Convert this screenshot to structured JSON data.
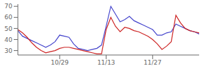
{
  "chart_data": {
    "type": "line",
    "x": [
      0,
      1,
      2,
      3,
      4,
      5,
      6,
      7,
      8,
      9,
      10,
      11,
      12,
      13,
      14,
      15,
      16,
      17,
      18,
      19,
      20,
      21,
      22,
      23,
      24,
      25,
      26,
      27,
      28,
      29,
      30,
      31,
      32,
      33,
      34,
      35,
      36,
      37,
      38,
      39
    ],
    "series": [
      {
        "color": "#4444cc",
        "values": [
          48,
          43,
          41,
          39,
          37,
          35,
          33,
          35,
          38,
          44,
          43,
          42,
          36,
          32,
          31,
          30,
          31,
          32,
          35,
          52,
          70,
          63,
          56,
          58,
          61,
          57,
          55,
          53,
          51,
          49,
          44,
          44,
          46,
          47,
          54,
          52,
          50,
          48,
          47,
          45
        ]
      },
      {
        "color": "#cc2222",
        "values": [
          49,
          46,
          42,
          37,
          33,
          30,
          28,
          29,
          30,
          32,
          33,
          33,
          32,
          31,
          30,
          29,
          28,
          27,
          27,
          49,
          60,
          52,
          47,
          51,
          50,
          48,
          47,
          45,
          43,
          40,
          36,
          31,
          34,
          38,
          62,
          55,
          50,
          48,
          47,
          46
        ]
      }
    ],
    "xlim": [
      0,
      39
    ],
    "xticks": [
      {
        "value": 9,
        "label": "10/29"
      },
      {
        "value": 19,
        "label": "11/13"
      },
      {
        "value": 29,
        "label": "11/27"
      }
    ],
    "ylim": [
      26,
      72
    ],
    "yticks": [
      30,
      40,
      50,
      60,
      70
    ],
    "grid": false
  }
}
